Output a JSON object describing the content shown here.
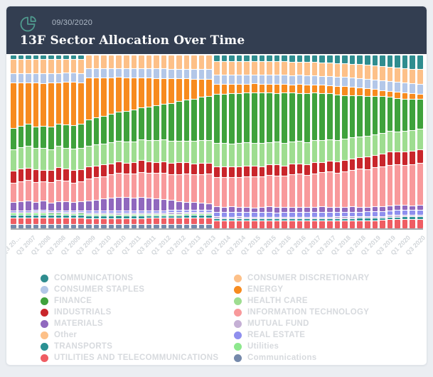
{
  "header": {
    "date": "09/30/2020",
    "title": "13F Sector Allocation Over Time",
    "bg_color": "#333e51",
    "icon": "pie-chart-icon",
    "icon_color": "#4f9a8e"
  },
  "chart_data": {
    "type": "bar",
    "subtype": "stacked-100-percent",
    "title": "13F Sector Allocation Over Time",
    "bar_count": 55,
    "label_every_n_bars": 2,
    "x_labels": [
      "Q3 20…",
      "Q3 2007",
      "Q1 2008",
      "Q3 2008",
      "Q1 2009",
      "Q3 2009",
      "Q1 2010",
      "Q3 2010",
      "Q1 2011",
      "Q3 2011",
      "Q1 2012",
      "Q3 2012",
      "Q1 2013",
      "Q3 2013",
      "Q1 2014",
      "Q3 2014",
      "Q1 2015",
      "Q3 2015",
      "Q1 2016",
      "Q3 2016",
      "Q1 2017",
      "Q3 2017",
      "Q1 2018",
      "Q3 2018",
      "Q1 2019",
      "Q3 2019",
      "Q1 2020",
      "Q3 2020"
    ],
    "ylim": [
      0,
      100
    ],
    "grid": false,
    "legend_position": "bottom",
    "series": [
      {
        "key": "communications-alt",
        "label": "Communications",
        "color": "#7589ab",
        "values": [
          2,
          2,
          2,
          2,
          2,
          2,
          2,
          2,
          2,
          2,
          2,
          2,
          2,
          2,
          2,
          2,
          2,
          2,
          2,
          2,
          2,
          2,
          2,
          2,
          2,
          2,
          2,
          0,
          0,
          0,
          0,
          0,
          0,
          0,
          0,
          0,
          0,
          0,
          0,
          0,
          0,
          0,
          0,
          0,
          0,
          0,
          0,
          0,
          0,
          0,
          0,
          0,
          0,
          0,
          0
        ]
      },
      {
        "key": "utilities-and-telecommunications",
        "label": "UTILITIES AND TELECOMMUNICATIONS",
        "color": "#ef5d63",
        "values": [
          3.5,
          3.5,
          3.5,
          3.5,
          3.5,
          3.5,
          3.5,
          3.5,
          3.5,
          3.5,
          3.2,
          3.2,
          3.2,
          3.2,
          3.2,
          3.2,
          3.2,
          3.2,
          3.2,
          3.2,
          3.2,
          3.2,
          3.2,
          3.2,
          3.2,
          3.2,
          3.2,
          4,
          4,
          4,
          4,
          4,
          4,
          4,
          4,
          4,
          4,
          4,
          4,
          4,
          4,
          4,
          4,
          4,
          4,
          4,
          4,
          4,
          4,
          4,
          4.5,
          4.5,
          4.5,
          4.5,
          4.5
        ]
      },
      {
        "key": "transports",
        "label": "TRANSPORTS",
        "color": "#2b9193",
        "values": [
          1.3,
          1.3,
          1.3,
          1.3,
          1.3,
          1.3,
          1.3,
          1.3,
          1.3,
          1.3,
          1,
          1,
          1,
          1,
          1,
          1,
          1,
          1,
          1,
          1,
          1,
          1,
          1,
          1,
          1,
          1,
          1,
          0.9,
          0.9,
          0.9,
          0.9,
          0.9,
          0.9,
          0.9,
          0.9,
          0.9,
          0.9,
          0.9,
          0.9,
          0.9,
          0.9,
          0.9,
          0.9,
          0.9,
          0.9,
          0.9,
          0.9,
          0.9,
          0.9,
          0.9,
          0.9,
          0.9,
          0.9,
          0.9,
          0.9
        ]
      },
      {
        "key": "utilities-lc",
        "label": "Utilities",
        "color": "#8de88d",
        "values": [
          0.8,
          0.8,
          0.8,
          0.8,
          0.8,
          0.8,
          0.8,
          0.8,
          0.8,
          0.8,
          0.4,
          0.4,
          0.4,
          0.4,
          0.4,
          0.4,
          0.4,
          0.4,
          0.4,
          0.4,
          0.4,
          0.4,
          0.4,
          0.4,
          0.4,
          0.4,
          0.4,
          0,
          0,
          0,
          0,
          0,
          0,
          0,
          0,
          0,
          0,
          0,
          0,
          0,
          0,
          0,
          0,
          0,
          0,
          0,
          0,
          0,
          0,
          0,
          0,
          0,
          0,
          0,
          0
        ]
      },
      {
        "key": "mutual-fund",
        "label": "MUTUAL FUND",
        "color": "#c5b0d5",
        "values": [
          0.3,
          0.3,
          0.3,
          0.3,
          0.3,
          0.3,
          0.3,
          0.3,
          0.3,
          0.3,
          0.5,
          0.5,
          0.5,
          0.5,
          0.5,
          0.5,
          0.5,
          0.5,
          0.5,
          0.5,
          0.5,
          0.5,
          0.5,
          0.5,
          0.5,
          0.5,
          0.5,
          0.5,
          0.5,
          0.5,
          0.5,
          0.5,
          0.5,
          0.5,
          0.5,
          0.5,
          0.5,
          0.5,
          0.5,
          0.5,
          0.5,
          0.5,
          0.5,
          0.5,
          0.5,
          0.5,
          0.5,
          0.5,
          0.5,
          0.5,
          0.5,
          0.5,
          0.5,
          0.5,
          0.5
        ]
      },
      {
        "key": "real-estate",
        "label": "REAL ESTATE",
        "color": "#8f8fee",
        "values": [
          0.4,
          0.4,
          0.4,
          0.4,
          0.4,
          0.4,
          0.4,
          0.4,
          0.4,
          0.4,
          0.8,
          0.8,
          0.8,
          0.8,
          0.8,
          0.8,
          0.8,
          0.8,
          0.8,
          0.8,
          0.8,
          0.8,
          0.8,
          0.8,
          0.8,
          0.8,
          0.8,
          2.2,
          2.2,
          2.2,
          2.2,
          2.2,
          2.2,
          2.2,
          2.2,
          2.2,
          2.2,
          2.2,
          2.2,
          2.2,
          2.2,
          2.2,
          2.2,
          2.2,
          2.2,
          2.2,
          2.2,
          2.2,
          2.2,
          2.2,
          2.2,
          2.2,
          2.2,
          2.2,
          2.2
        ]
      },
      {
        "key": "materials",
        "label": "MATERIALS",
        "color": "#9068be",
        "values": [
          4.5,
          4.8,
          5.2,
          4.6,
          5.0,
          4.4,
          4.9,
          5.3,
          4.7,
          5.0,
          5.5,
          6.0,
          6.8,
          7.4,
          8.0,
          7.6,
          7.0,
          7.8,
          7.2,
          6.4,
          5.8,
          5.2,
          4.6,
          4.2,
          3.8,
          3.4,
          3.0,
          2.8,
          2.5,
          2.7,
          2.4,
          2.6,
          2.3,
          2.5,
          2.8,
          2.6,
          2.4,
          2.7,
          2.5,
          2.3,
          2.6,
          2.8,
          2.5,
          2.2,
          2.4,
          2.6,
          2.3,
          2.1,
          2.4,
          2.2,
          2.0,
          2.3,
          2.1,
          1.9,
          2.2
        ]
      },
      {
        "key": "information-technology",
        "label": "INFORMATION TECHNOLOGY",
        "color": "#f8999b",
        "values": [
          11,
          11.5,
          12,
          11.5,
          11,
          12,
          12.5,
          12,
          11.5,
          12,
          12.5,
          13,
          12.5,
          13.5,
          14,
          13.5,
          14,
          14.5,
          14,
          14.5,
          15,
          14.5,
          15,
          15.5,
          15,
          15.5,
          16,
          16,
          16.5,
          16,
          16.5,
          17,
          17.5,
          17,
          17.5,
          18,
          17.5,
          18,
          18.5,
          18,
          18.5,
          19,
          19.5,
          19,
          19.5,
          20,
          20.5,
          20,
          20.5,
          21,
          21.5,
          21,
          20.5,
          21,
          21.5
        ]
      },
      {
        "key": "industrials",
        "label": "INDUSTRIALS",
        "color": "#c9262b",
        "values": [
          7,
          7.5,
          6.8,
          7.2,
          6.5,
          7,
          7.4,
          6.9,
          7.1,
          6.6,
          6.4,
          6,
          6.5,
          5.9,
          6.3,
          5.8,
          6.2,
          6.6,
          6,
          5.7,
          6.1,
          5.9,
          6.3,
          5.8,
          5.6,
          6,
          5.7,
          5.6,
          5.3,
          5.7,
          5.4,
          5.8,
          5.5,
          5.2,
          5.6,
          5.9,
          5.4,
          5.7,
          5.3,
          5.5,
          5.8,
          5.4,
          5.6,
          5.9,
          6.1,
          5.8,
          6,
          6.3,
          6.1,
          6.4,
          6.6,
          6.3,
          6.5,
          6.8,
          7
        ]
      },
      {
        "key": "health-care",
        "label": "HEALTH CARE",
        "color": "#9edd90",
        "values": [
          12.5,
          12,
          12.8,
          12.3,
          12.6,
          12.2,
          12.7,
          12.4,
          12.8,
          12.5,
          12,
          12.3,
          11.8,
          12.1,
          11.9,
          12.2,
          11.8,
          12,
          12.4,
          12.1,
          11.9,
          12.2,
          12,
          11.8,
          12.1,
          12.3,
          12,
          12.5,
          12.8,
          12.4,
          12.6,
          12.9,
          12.5,
          12.7,
          12.4,
          12.8,
          12.5,
          12.3,
          12.6,
          12.2,
          12.4,
          12.1,
          11.9,
          11.7,
          11.5,
          11.3,
          11.1,
          10.9,
          10.8,
          10.6,
          10.5,
          10.4,
          10.3,
          10.2,
          10.1
        ]
      },
      {
        "key": "finance",
        "label": "FINANCE",
        "color": "#3fa23c",
        "values": [
          12,
          12.5,
          13,
          12,
          12.8,
          13.5,
          13,
          13.8,
          14,
          14.5,
          15,
          15.5,
          16,
          16.5,
          17,
          17.5,
          18,
          18.5,
          19,
          19.5,
          20,
          21,
          22,
          22.5,
          23,
          23.5,
          24,
          27,
          27.5,
          28,
          27.5,
          28,
          28.5,
          28,
          27.5,
          28,
          28.5,
          27.5,
          27,
          27.5,
          26.5,
          26,
          25.5,
          25,
          24,
          23,
          22,
          21,
          20,
          19,
          18,
          17,
          16.5,
          16,
          15.5
        ]
      },
      {
        "key": "energy",
        "label": "ENERGY",
        "color": "#f78b1f",
        "values": [
          27,
          25.5,
          24,
          26,
          25,
          26.5,
          24.5,
          25.5,
          26,
          24.8,
          24,
          23,
          22,
          21,
          20.5,
          19.5,
          18.5,
          17.5,
          16.5,
          15.5,
          14.5,
          13.5,
          12.5,
          11.5,
          10.5,
          9.8,
          9,
          5.5,
          5.2,
          4.8,
          5,
          4.6,
          4.9,
          4.4,
          4.7,
          5,
          4.5,
          4.2,
          4.6,
          4.3,
          4,
          4.4,
          4.1,
          4.5,
          4.8,
          4.3,
          4,
          3.7,
          3.4,
          3,
          2.8,
          3.1,
          2.7,
          2.4,
          2.2
        ]
      },
      {
        "key": "consumer-staples",
        "label": "CONSUMER STAPLES",
        "color": "#b3c7e8",
        "values": [
          5.2,
          5.2,
          5.2,
          5.2,
          5.2,
          5.2,
          5.2,
          5.2,
          5.2,
          5.2,
          5,
          5,
          5,
          5,
          5,
          5,
          5,
          5,
          5,
          5,
          5,
          5,
          5,
          5,
          5,
          5,
          5,
          4.8,
          4.8,
          4.8,
          4.8,
          4.8,
          4.8,
          4.8,
          4.8,
          4.8,
          4.8,
          4.8,
          4.8,
          4.8,
          4.8,
          4.8,
          4.8,
          4.8,
          4.8,
          4.8,
          4.8,
          4.8,
          4.8,
          4.8,
          4.8,
          4.8,
          4.8,
          4.8,
          4.8
        ]
      },
      {
        "key": "consumer-discretionary",
        "label": "CONSUMER DISCRETIONARY",
        "color": "#fdc088",
        "values": [
          8,
          8,
          8,
          8,
          8,
          8,
          8,
          8,
          8,
          8,
          7.5,
          7.5,
          7.5,
          7.5,
          7.5,
          7.5,
          7.5,
          7.5,
          7.5,
          7.5,
          7.5,
          7.5,
          7.5,
          7.5,
          7.5,
          7.5,
          7.5,
          7.2,
          7.2,
          7.2,
          7.2,
          7.2,
          7.2,
          7.2,
          7.2,
          7.2,
          7.2,
          7.2,
          7.2,
          7.2,
          7.2,
          7.2,
          7.2,
          7.2,
          7.2,
          7.2,
          7.2,
          7.2,
          7.2,
          7.2,
          7.2,
          7.2,
          7.2,
          7.2,
          7.2
        ]
      },
      {
        "key": "communications",
        "label": "COMMUNICATIONS",
        "color": "#2f8d8f",
        "values": [
          2.2,
          2.2,
          2.2,
          2.2,
          2.2,
          2.2,
          2.2,
          2.2,
          2.2,
          2.2,
          0,
          0,
          0,
          0,
          0,
          0,
          0,
          0,
          0,
          0,
          0,
          0,
          0,
          0,
          0,
          0,
          0,
          3,
          3,
          3.2,
          3.1,
          3.3,
          3.2,
          3.4,
          3.3,
          3.5,
          3.4,
          3.6,
          3.5,
          3.7,
          3.8,
          3.9,
          4,
          4.2,
          4.4,
          4.6,
          4.8,
          5,
          5.3,
          5.6,
          6,
          6.3,
          6.6,
          6.9,
          7.2
        ]
      }
    ]
  },
  "legend": {
    "columns": [
      {
        "items": [
          {
            "label": "COMMUNICATIONS",
            "color": "#2f8d8f"
          },
          {
            "label": "CONSUMER STAPLES",
            "color": "#b3c7e8"
          },
          {
            "label": "FINANCE",
            "color": "#3fa23c"
          },
          {
            "label": "INDUSTRIALS",
            "color": "#c9262b"
          },
          {
            "label": "MATERIALS",
            "color": "#9068be"
          },
          {
            "label": "Other",
            "color": "#fdc088"
          },
          {
            "label": "TRANSPORTS",
            "color": "#2b9193"
          },
          {
            "label": "UTILITIES AND TELECOMMUNICATIONS",
            "color": "#ef5d63"
          },
          {
            "label": "UTILITIES",
            "color": "#a5e8e0"
          }
        ]
      },
      {
        "items": [
          {
            "label": "CONSUMER DISCRETIONARY",
            "color": "#fdc088"
          },
          {
            "label": "ENERGY",
            "color": "#f78b1f"
          },
          {
            "label": "HEALTH CARE",
            "color": "#9edd90"
          },
          {
            "label": "INFORMATION TECHNOLOGY",
            "color": "#f8999b"
          },
          {
            "label": "MUTUAL FUND",
            "color": "#c5b0d5"
          },
          {
            "label": "REAL ESTATE",
            "color": "#8f8fee"
          },
          {
            "label": "Utilities",
            "color": "#8de88d"
          },
          {
            "label": "Communications",
            "color": "#7589ab"
          },
          {
            "label": "UTILITIES & TELECOMMUNICATIONS",
            "color": "#4fc9f5"
          }
        ]
      }
    ]
  }
}
